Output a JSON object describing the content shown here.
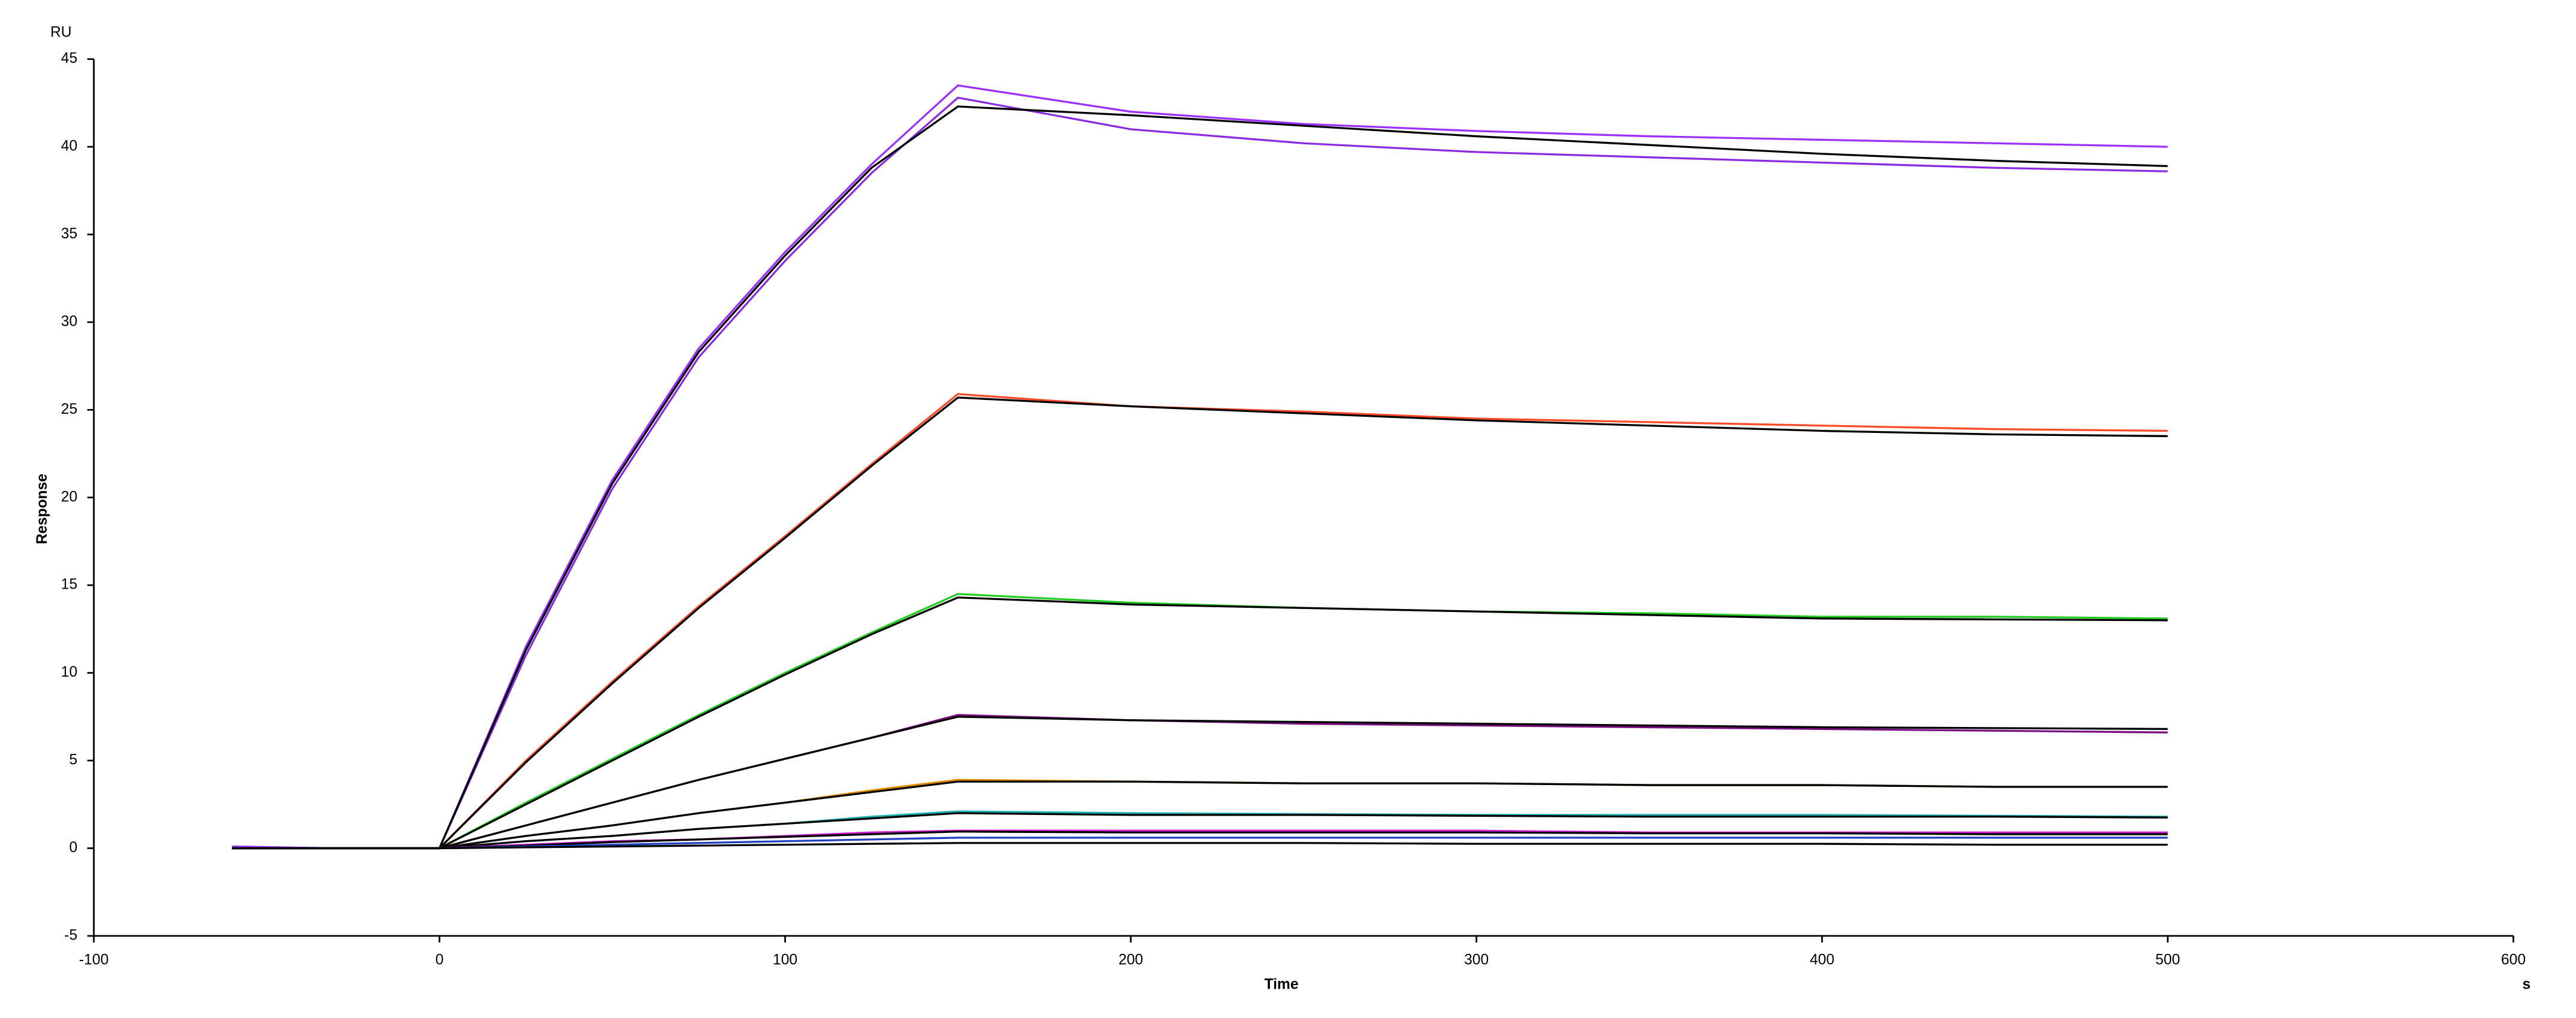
{
  "chart_data": {
    "type": "line",
    "y_label": "Response",
    "y_unit": "RU",
    "x_label": "Time",
    "x_unit": "s",
    "xlim": [
      -100,
      600
    ],
    "xticks": [
      -100,
      0,
      100,
      200,
      300,
      400,
      500,
      600
    ],
    "ylim": [
      -5,
      45
    ],
    "yticks": [
      -5,
      0,
      5,
      10,
      15,
      20,
      25,
      30,
      35,
      40,
      45
    ],
    "grid": false,
    "x": [
      -60,
      -30,
      0,
      25,
      50,
      75,
      100,
      125,
      150,
      200,
      250,
      300,
      350,
      400,
      450,
      500
    ],
    "series": [
      {
        "color": "#9b30ff",
        "values": [
          0.1,
          0,
          0,
          11.5,
          21,
          28.5,
          34,
          39,
          43.5,
          42,
          41.3,
          40.9,
          40.6,
          40.4,
          40.2,
          40.0
        ]
      },
      {
        "color": "#8a2be2",
        "values": [
          0,
          0,
          0,
          11,
          20.5,
          28,
          33.5,
          38.5,
          42.8,
          41,
          40.2,
          39.7,
          39.4,
          39.1,
          38.8,
          38.6
        ]
      },
      {
        "color": "#000000",
        "values": [
          0,
          0,
          0,
          11.3,
          20.8,
          28.3,
          33.8,
          38.8,
          42.3,
          41.8,
          41.2,
          40.6,
          40.1,
          39.6,
          39.2,
          38.9
        ]
      },
      {
        "color": "#ff4a2a",
        "values": [
          0,
          0,
          0,
          5,
          9.5,
          13.8,
          17.8,
          21.9,
          25.9,
          25.2,
          24.9,
          24.5,
          24.3,
          24.1,
          23.9,
          23.8
        ]
      },
      {
        "color": "#000000",
        "values": [
          0,
          0,
          0,
          4.9,
          9.4,
          13.7,
          17.7,
          21.8,
          25.7,
          25.2,
          24.8,
          24.4,
          24.1,
          23.8,
          23.6,
          23.5
        ]
      },
      {
        "color": "#22cc22",
        "values": [
          0,
          0,
          0,
          2.6,
          5.1,
          7.6,
          10,
          12.3,
          14.5,
          14,
          13.7,
          13.5,
          13.4,
          13.2,
          13.2,
          13.1
        ]
      },
      {
        "color": "#000000",
        "values": [
          0,
          0,
          0,
          2.5,
          5,
          7.5,
          9.9,
          12.2,
          14.3,
          13.9,
          13.7,
          13.5,
          13.3,
          13.1,
          13.05,
          13.0
        ]
      },
      {
        "color": "#7a1080",
        "values": [
          0,
          0,
          0,
          1.3,
          2.6,
          3.9,
          5.1,
          6.3,
          7.6,
          7.3,
          7.1,
          7,
          6.9,
          6.8,
          6.7,
          6.6
        ]
      },
      {
        "color": "#000000",
        "values": [
          0,
          0,
          0,
          1.3,
          2.6,
          3.9,
          5.1,
          6.3,
          7.5,
          7.3,
          7.2,
          7.1,
          7.0,
          6.9,
          6.85,
          6.8
        ]
      },
      {
        "color": "#e08a00",
        "values": [
          0,
          0,
          0,
          0.7,
          1.3,
          2,
          2.6,
          3.3,
          3.9,
          3.8,
          3.7,
          3.7,
          3.6,
          3.6,
          3.5,
          3.5
        ]
      },
      {
        "color": "#000000",
        "values": [
          0,
          0,
          0,
          0.7,
          1.3,
          2,
          2.6,
          3.2,
          3.8,
          3.8,
          3.7,
          3.7,
          3.6,
          3.6,
          3.5,
          3.5
        ]
      },
      {
        "color": "#20b0b0",
        "values": [
          0,
          0,
          0,
          0.4,
          0.7,
          1.1,
          1.4,
          1.8,
          2.1,
          2,
          1.95,
          1.9,
          1.9,
          1.9,
          1.85,
          1.8
        ]
      },
      {
        "color": "#000000",
        "values": [
          0,
          0,
          0,
          0.4,
          0.7,
          1.1,
          1.4,
          1.7,
          2.0,
          1.9,
          1.9,
          1.85,
          1.8,
          1.8,
          1.8,
          1.75
        ]
      },
      {
        "color": "#d020d0",
        "values": [
          0,
          0,
          0,
          0.2,
          0.4,
          0.5,
          0.7,
          0.9,
          1.0,
          1,
          1,
          1,
          0.9,
          0.9,
          0.9,
          0.9
        ]
      },
      {
        "color": "#000000",
        "values": [
          0,
          0,
          0,
          0.15,
          0.35,
          0.5,
          0.65,
          0.8,
          0.95,
          0.9,
          0.9,
          0.9,
          0.85,
          0.85,
          0.8,
          0.8
        ]
      },
      {
        "color": "#2040c0",
        "values": [
          0,
          0,
          0,
          0.1,
          0.2,
          0.3,
          0.4,
          0.5,
          0.6,
          0.6,
          0.6,
          0.6,
          0.6,
          0.6,
          0.6,
          0.6
        ]
      },
      {
        "color": "#000000",
        "values": [
          0,
          0,
          0,
          0.05,
          0.1,
          0.15,
          0.2,
          0.25,
          0.3,
          0.3,
          0.3,
          0.25,
          0.25,
          0.25,
          0.2,
          0.2
        ]
      }
    ]
  }
}
